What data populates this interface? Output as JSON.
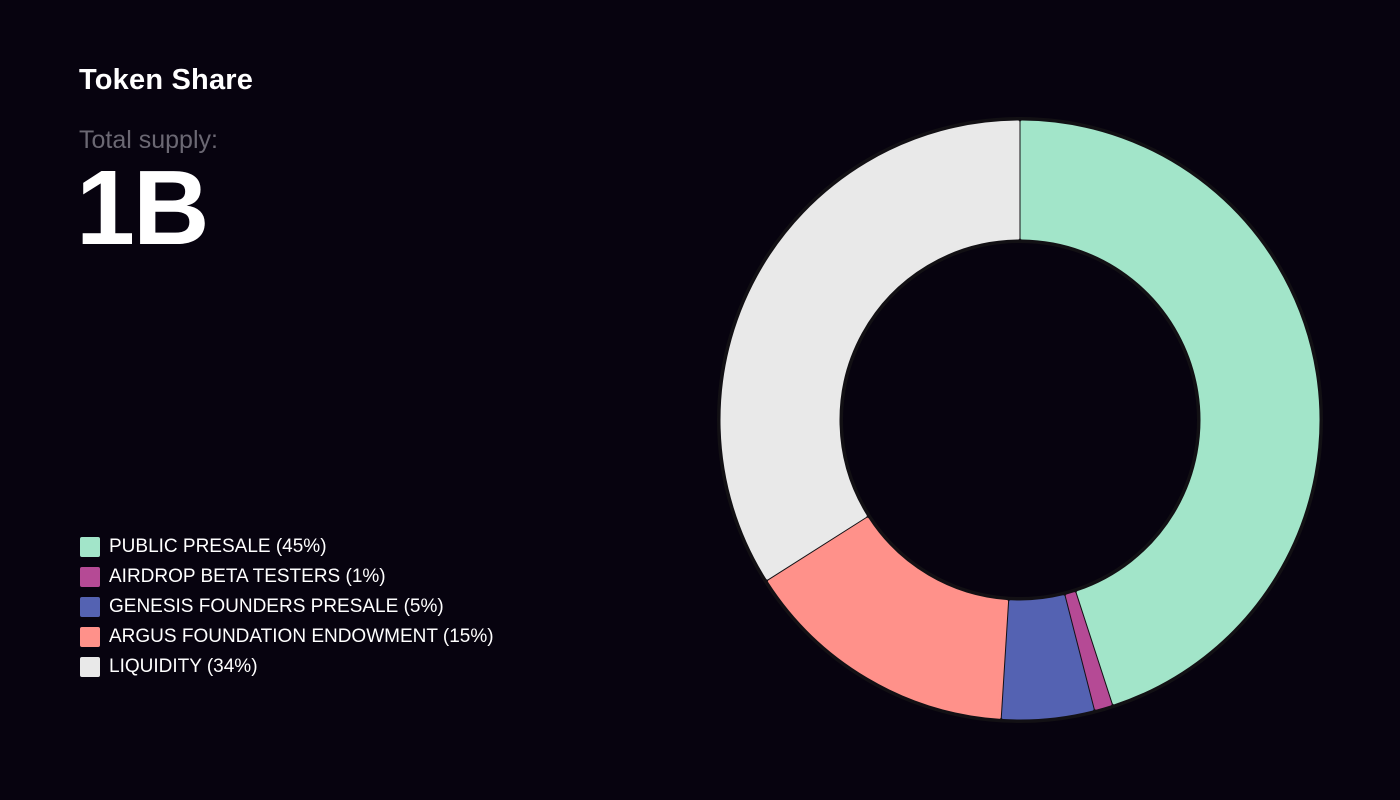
{
  "header": {
    "title": "Token Share",
    "supply_label": "Total supply:",
    "supply_value": "1B"
  },
  "legend": [
    {
      "label": "PUBLIC PRESALE (45%)",
      "color": "#a2e5c9"
    },
    {
      "label": "AIRDROP BETA TESTERS (1%)",
      "color": "#b54a95"
    },
    {
      "label": "GENESIS FOUNDERS PRESALE (5%)",
      "color": "#5462b2"
    },
    {
      "label": "ARGUS FOUNDATION ENDOWMENT (15%)",
      "color": "#ff918a"
    },
    {
      "label": "LIQUIDITY (34%)",
      "color": "#e9e9e9"
    }
  ],
  "chart_data": {
    "type": "pie",
    "variant": "donut",
    "categories": [
      "PUBLIC PRESALE",
      "AIRDROP BETA TESTERS",
      "GENESIS FOUNDERS PRESALE",
      "ARGUS FOUNDATION ENDOWMENT",
      "LIQUIDITY"
    ],
    "values": [
      45,
      1,
      5,
      15,
      34
    ],
    "colors": [
      "#a2e5c9",
      "#b54a95",
      "#5462b2",
      "#ff918a",
      "#e9e9e9"
    ],
    "legend_position": "bottom-left",
    "background": "#07030f"
  }
}
